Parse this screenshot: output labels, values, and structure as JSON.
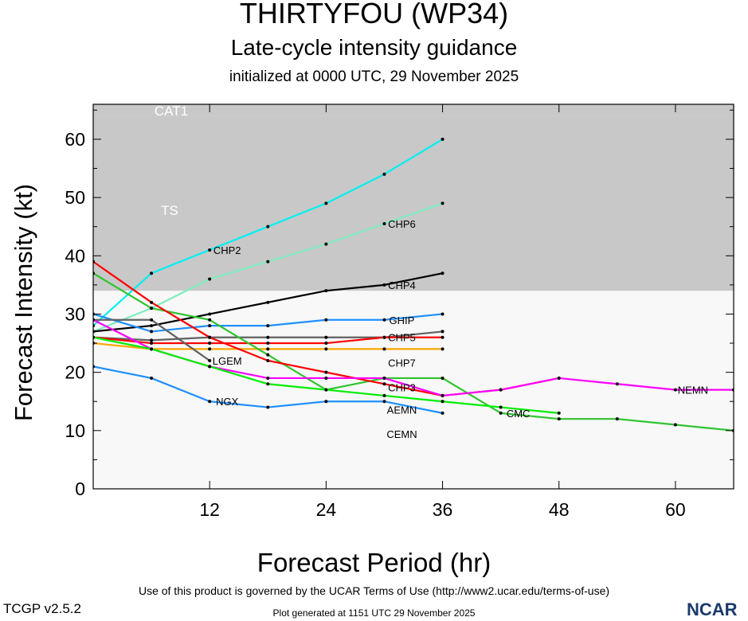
{
  "title": "THIRTYFOU (WP34)",
  "subtitle": "Late-cycle intensity guidance",
  "initialized": "initialized at 0000 UTC, 29 November 2025",
  "footer": {
    "terms": "Use of this product is governed by the UCAR Terms of Use (http://www2.ucar.edu/terms-of-use)",
    "generated": "Plot generated at 1151 UTC   29 November 2025",
    "version": "TCGP v2.5.2",
    "logo": "NCAR"
  },
  "chart_data": {
    "type": "line",
    "xlabel": "Forecast Period (hr)",
    "ylabel": "Forecast Intensity (kt)",
    "xlim": [
      0,
      66
    ],
    "ylim": [
      0,
      66
    ],
    "xticks": [
      12,
      24,
      36,
      48,
      60
    ],
    "yticks": [
      0,
      10,
      20,
      30,
      40,
      50,
      60
    ],
    "bands": [
      {
        "name": "TS",
        "from": 34,
        "to": 64,
        "color": "#c8c8c8"
      },
      {
        "name": "CAT1",
        "from": 64,
        "to": 83,
        "color": "#c8c8c8"
      }
    ],
    "background_color": "#f8f8f8",
    "series": [
      {
        "name": "CHP2",
        "color": "#00f0f0",
        "label_at": 12,
        "x": [
          0,
          6,
          12,
          18,
          24,
          30,
          36
        ],
        "y": [
          28,
          37,
          41,
          45,
          49,
          54,
          60
        ]
      },
      {
        "name": "CHP6",
        "color": "#7fecc0",
        "label_at": 30,
        "x": [
          0,
          6,
          12,
          18,
          24,
          30,
          36
        ],
        "y": [
          27,
          31,
          36,
          39,
          42,
          45.5,
          49
        ]
      },
      {
        "name": "CHP4",
        "color": "#000000",
        "label_at": 30,
        "x": [
          0,
          6,
          12,
          18,
          24,
          30,
          36
        ],
        "y": [
          27,
          28,
          30,
          32,
          34,
          35,
          37
        ]
      },
      {
        "name": "GHIP",
        "color": "#1e90ff",
        "label_at": 30,
        "x": [
          0,
          6,
          12,
          18,
          24,
          30,
          36
        ],
        "y": [
          30,
          27,
          28,
          28,
          29,
          29,
          30
        ]
      },
      {
        "name": "CHP5",
        "color": "#606060",
        "label_at": 30,
        "x": [
          0,
          6,
          12,
          18,
          24,
          30,
          36
        ],
        "y": [
          26,
          25.5,
          26,
          26,
          26,
          26,
          27
        ]
      },
      {
        "name": "CHP7",
        "color": "#ff0000",
        "label_at": 30,
        "x": [
          0,
          6,
          12,
          18,
          24,
          30,
          36
        ],
        "y": [
          26,
          25,
          25,
          25,
          25,
          26,
          26
        ]
      },
      {
        "name": "CHP3",
        "color": "#ffa500",
        "label_at": 30,
        "x": [
          0,
          6,
          12,
          18,
          24,
          30,
          36
        ],
        "y": [
          25,
          24,
          24,
          24,
          24,
          24,
          24
        ]
      },
      {
        "name": "LGEM",
        "color": "#606060",
        "label_at": 12,
        "x": [
          0,
          6,
          12
        ],
        "y": [
          29,
          29,
          22
        ]
      },
      {
        "name": "CMC",
        "color": "#2ec42e",
        "label_at": 42,
        "x": [
          0,
          6,
          12,
          18,
          24,
          30,
          36,
          42,
          48,
          54,
          60,
          66
        ],
        "y": [
          37,
          31,
          29,
          23,
          17,
          19,
          19,
          13,
          12,
          12,
          11,
          10
        ]
      },
      {
        "name": "AEMN",
        "color": "#ff0000",
        "label_at": 30,
        "x": [
          0,
          6,
          12,
          18,
          24,
          30,
          36,
          42,
          48
        ],
        "y": [
          39,
          32,
          26,
          22,
          20,
          18,
          16,
          17,
          19
        ]
      },
      {
        "name": "NEMN",
        "color": "#ff00ff",
        "label_at": 60,
        "x": [
          0,
          6,
          12,
          18,
          24,
          30,
          36,
          42,
          48,
          54,
          60,
          66
        ],
        "y": [
          29,
          24,
          21,
          19,
          19,
          19,
          16,
          17,
          19,
          18,
          17,
          17
        ]
      },
      {
        "name": "CEMN",
        "color": "#00ee00",
        "label_at": 30,
        "x": [
          0,
          6,
          12,
          18,
          24,
          30,
          36,
          42,
          48
        ],
        "y": [
          26,
          24,
          21,
          18,
          17,
          16,
          15,
          14,
          13
        ]
      },
      {
        "name": "NGX",
        "color": "#1e90ff",
        "label_at": 12,
        "x": [
          0,
          6,
          12,
          18,
          24,
          30,
          36
        ],
        "y": [
          21,
          19,
          15,
          14,
          15,
          15,
          13
        ]
      }
    ]
  }
}
